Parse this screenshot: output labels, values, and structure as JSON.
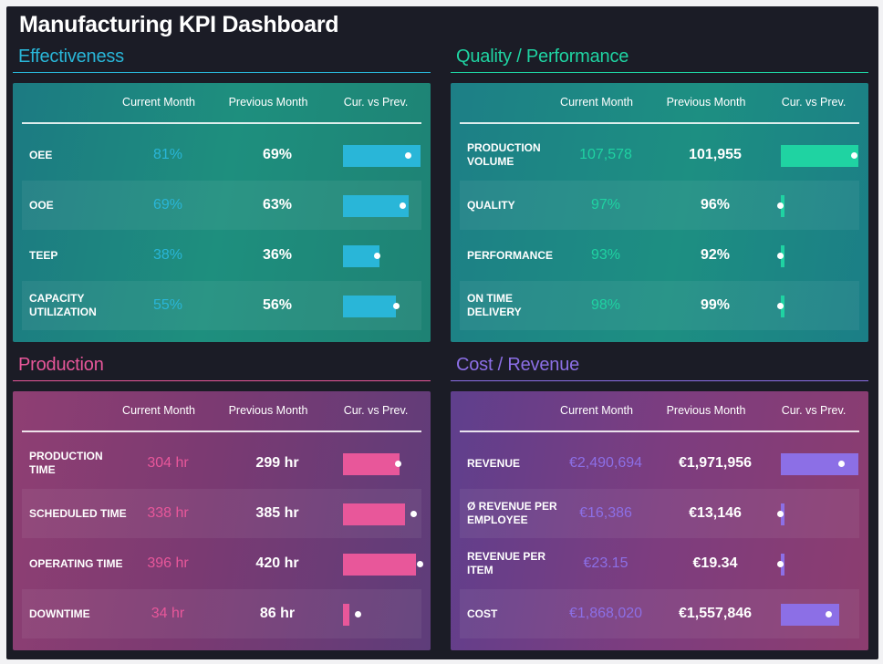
{
  "dashboard": {
    "title": "Manufacturing KPI Dashboard"
  },
  "colors": {
    "effectiveness": "#29b6d8",
    "quality": "#1fd3a2",
    "production": "#e8579a",
    "cost": "#8c6fe6"
  },
  "headers": {
    "current": "Current Month",
    "previous": "Previous Month",
    "compare": "Cur. vs Prev."
  },
  "chart_data": [
    {
      "type": "table",
      "title": "Effectiveness",
      "columns": [
        "Current Month",
        "Previous Month",
        "Cur. vs Prev."
      ],
      "rows": [
        {
          "label": "OEE",
          "current": "81%",
          "previous": "69%",
          "cur_value": 81,
          "prev_value": 69
        },
        {
          "label": "OOE",
          "current": "69%",
          "previous": "63%",
          "cur_value": 69,
          "prev_value": 63
        },
        {
          "label": "TEEP",
          "current": "38%",
          "previous": "36%",
          "cur_value": 38,
          "prev_value": 36
        },
        {
          "label": "CAPACITY UTILIZATION",
          "current": "55%",
          "previous": "56%",
          "cur_value": 55,
          "prev_value": 56
        }
      ]
    },
    {
      "type": "table",
      "title": "Quality / Performance",
      "columns": [
        "Current Month",
        "Previous Month",
        "Cur. vs Prev."
      ],
      "rows": [
        {
          "label": "PRODUCTION VOLUME",
          "current": "107,578",
          "previous": "101,955",
          "cur_value": 107578,
          "prev_value": 101955
        },
        {
          "label": "QUALITY",
          "current": "97%",
          "previous": "96%",
          "cur_value": 97,
          "prev_value": 96
        },
        {
          "label": "PERFORMANCE",
          "current": "93%",
          "previous": "92%",
          "cur_value": 93,
          "prev_value": 92
        },
        {
          "label": "ON TIME DELIVERY",
          "current": "98%",
          "previous": "99%",
          "cur_value": 98,
          "prev_value": 99
        }
      ]
    },
    {
      "type": "table",
      "title": "Production",
      "columns": [
        "Current Month",
        "Previous Month",
        "Cur. vs Prev."
      ],
      "rows": [
        {
          "label": "PRODUCTION TIME",
          "current": "304 hr",
          "previous": "299 hr",
          "cur_value": 304,
          "prev_value": 299
        },
        {
          "label": "SCHEDULED TIME",
          "current": "338 hr",
          "previous": "385 hr",
          "cur_value": 338,
          "prev_value": 385
        },
        {
          "label": "OPERATING TIME",
          "current": "396 hr",
          "previous": "420 hr",
          "cur_value": 396,
          "prev_value": 420
        },
        {
          "label": "DOWNTIME",
          "current": "34 hr",
          "previous": "86 hr",
          "cur_value": 34,
          "prev_value": 86
        }
      ]
    },
    {
      "type": "table",
      "title": "Cost / Revenue",
      "columns": [
        "Current Month",
        "Previous Month",
        "Cur. vs Prev."
      ],
      "rows": [
        {
          "label": "REVENUE",
          "current": "€2,490,694",
          "previous": "€1,971,956",
          "cur_value": 2490694,
          "prev_value": 1971956
        },
        {
          "label": "Ø REVENUE PER EMPLOYEE",
          "current": "€16,386",
          "previous": "€13,146",
          "cur_value": 16386,
          "prev_value": 13146
        },
        {
          "label": "REVENUE PER ITEM",
          "current": "€23.15",
          "previous": "€19.34",
          "cur_value": 23.15,
          "prev_value": 19.34
        },
        {
          "label": "COST",
          "current": "€1,868,020",
          "previous": "€1,557,846",
          "cur_value": 1868020,
          "prev_value": 1557846
        }
      ]
    }
  ]
}
